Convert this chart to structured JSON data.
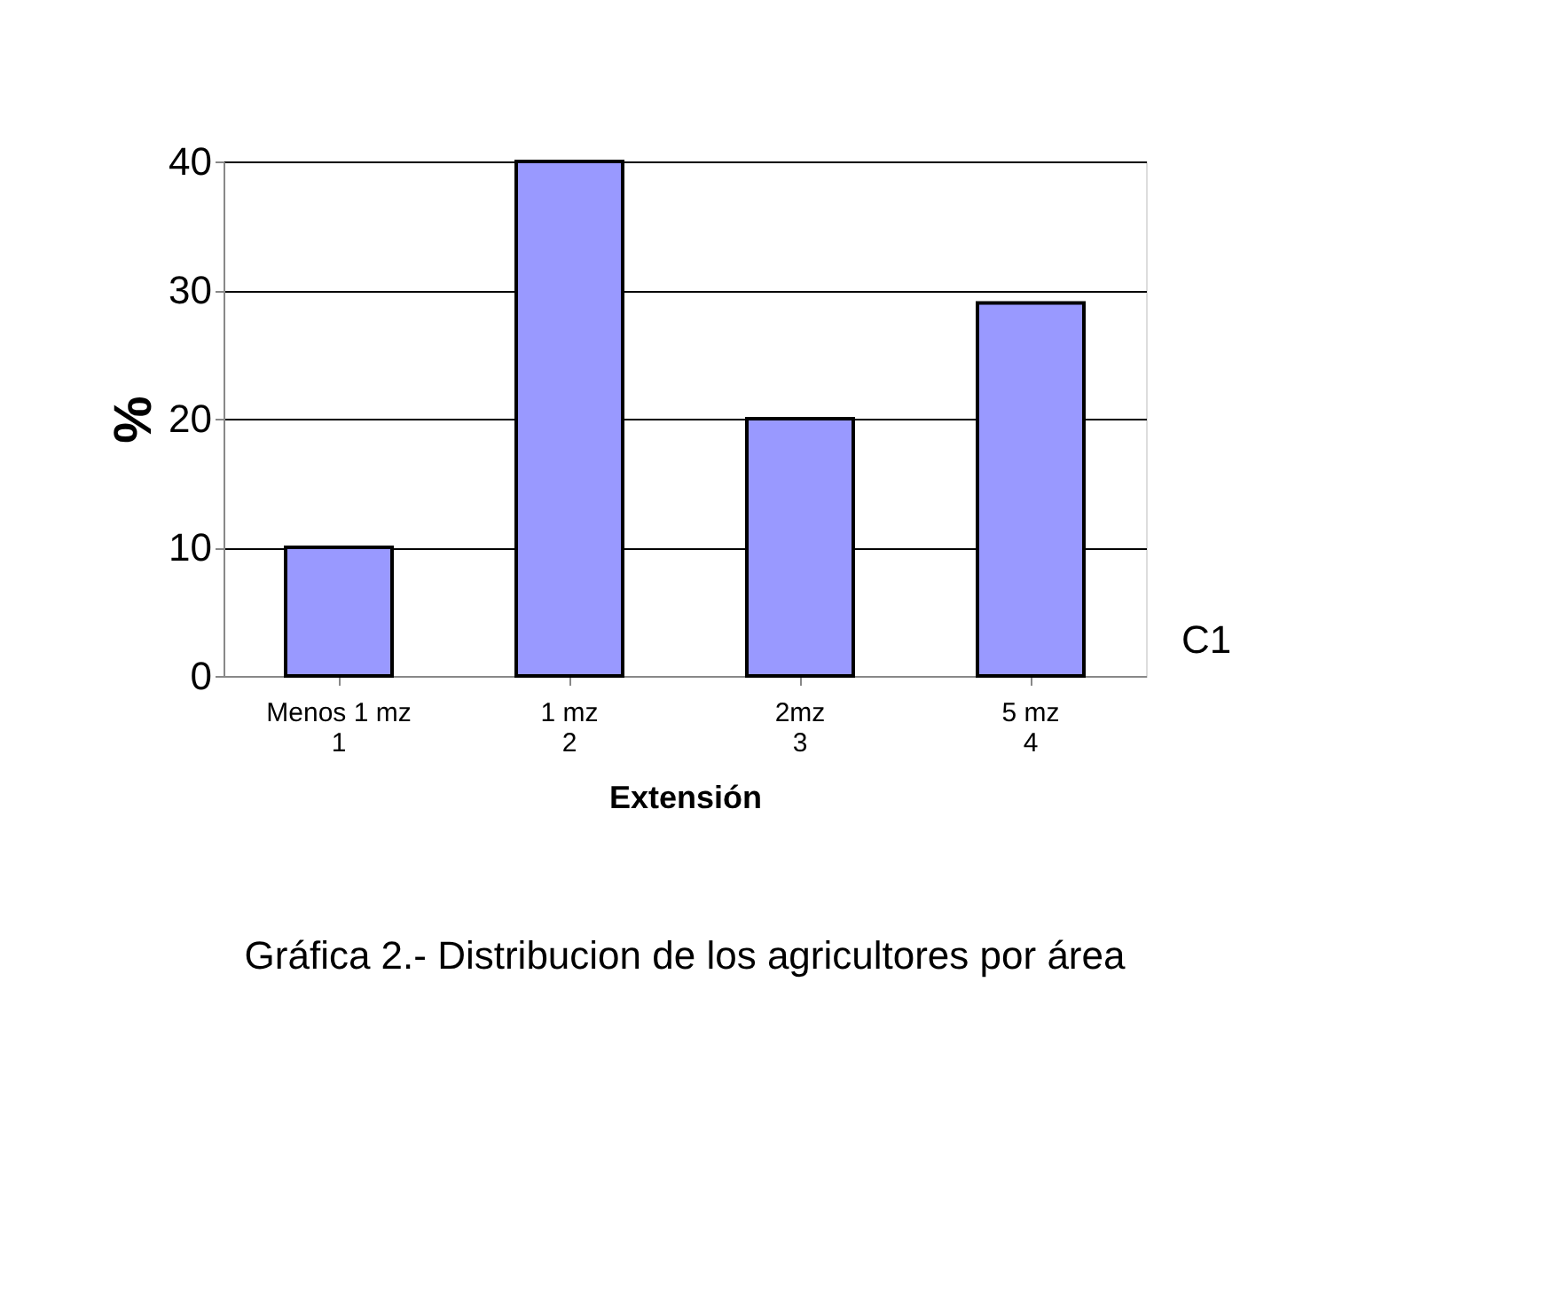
{
  "chart_data": {
    "type": "bar",
    "categories": [
      "Menos 1 mz\n1",
      "1 mz\n2",
      "2mz\n3",
      "5 mz\n4"
    ],
    "series": [
      {
        "name": "C1",
        "color": "#9999ff",
        "values": [
          10,
          40,
          20,
          29
        ]
      }
    ],
    "xlabel": "Extensión",
    "ylabel": "%",
    "ylim": [
      0,
      40
    ],
    "yticks": [
      0,
      10,
      20,
      30,
      40
    ],
    "grid": "y",
    "annotations": [
      "Gráfica 2.- Distribucion de los agricultores por área"
    ]
  }
}
